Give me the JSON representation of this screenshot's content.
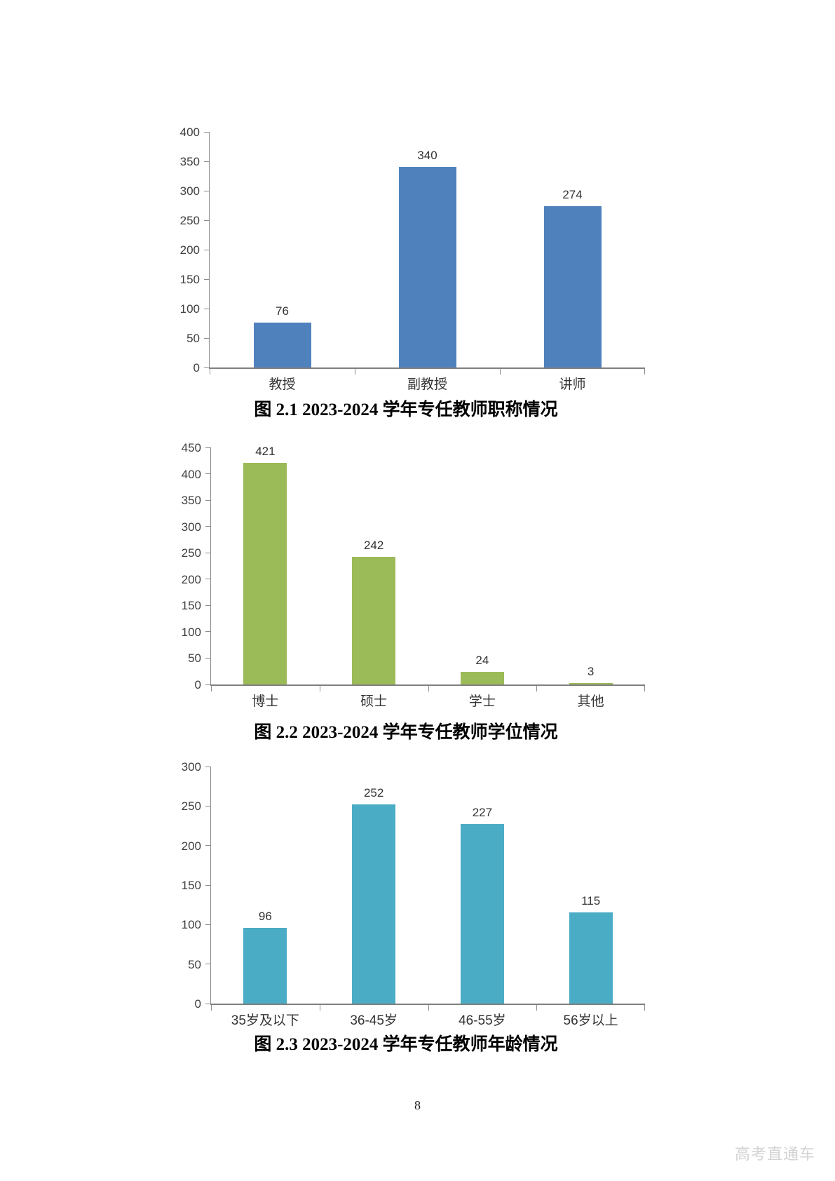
{
  "page": {
    "number": "8",
    "watermark": "高考直通车"
  },
  "chart_data": [
    {
      "type": "bar",
      "categories": [
        "教授",
        "副教授",
        "讲师"
      ],
      "values": [
        76,
        340,
        274
      ],
      "title": "图 2.1 2023-2024 学年专任教师职称情况",
      "xlabel": "",
      "ylabel": "",
      "ylim": [
        0,
        400
      ],
      "ytick_step": 50,
      "yticks": [
        0,
        50,
        100,
        150,
        200,
        250,
        300,
        350,
        400
      ],
      "bar_color": "#4F81BD",
      "grid": false,
      "legend": "none",
      "value_labels": true
    },
    {
      "type": "bar",
      "categories": [
        "博士",
        "硕士",
        "学士",
        "其他"
      ],
      "values": [
        421,
        242,
        24,
        3
      ],
      "title": "图 2.2 2023-2024 学年专任教师学位情况",
      "xlabel": "",
      "ylabel": "",
      "ylim": [
        0,
        450
      ],
      "ytick_step": 50,
      "yticks": [
        0,
        50,
        100,
        150,
        200,
        250,
        300,
        350,
        400,
        450
      ],
      "bar_color": "#9BBB59",
      "grid": false,
      "legend": "none",
      "value_labels": true
    },
    {
      "type": "bar",
      "categories": [
        "35岁及以下",
        "36-45岁",
        "46-55岁",
        "56岁以上"
      ],
      "values": [
        96,
        252,
        227,
        115
      ],
      "title": "图 2.3 2023-2024 学年专任教师年龄情况",
      "xlabel": "",
      "ylabel": "",
      "ylim": [
        0,
        300
      ],
      "ytick_step": 50,
      "yticks": [
        0,
        50,
        100,
        150,
        200,
        250,
        300
      ],
      "bar_color": "#4BACC6",
      "grid": false,
      "legend": "none",
      "value_labels": true
    }
  ]
}
